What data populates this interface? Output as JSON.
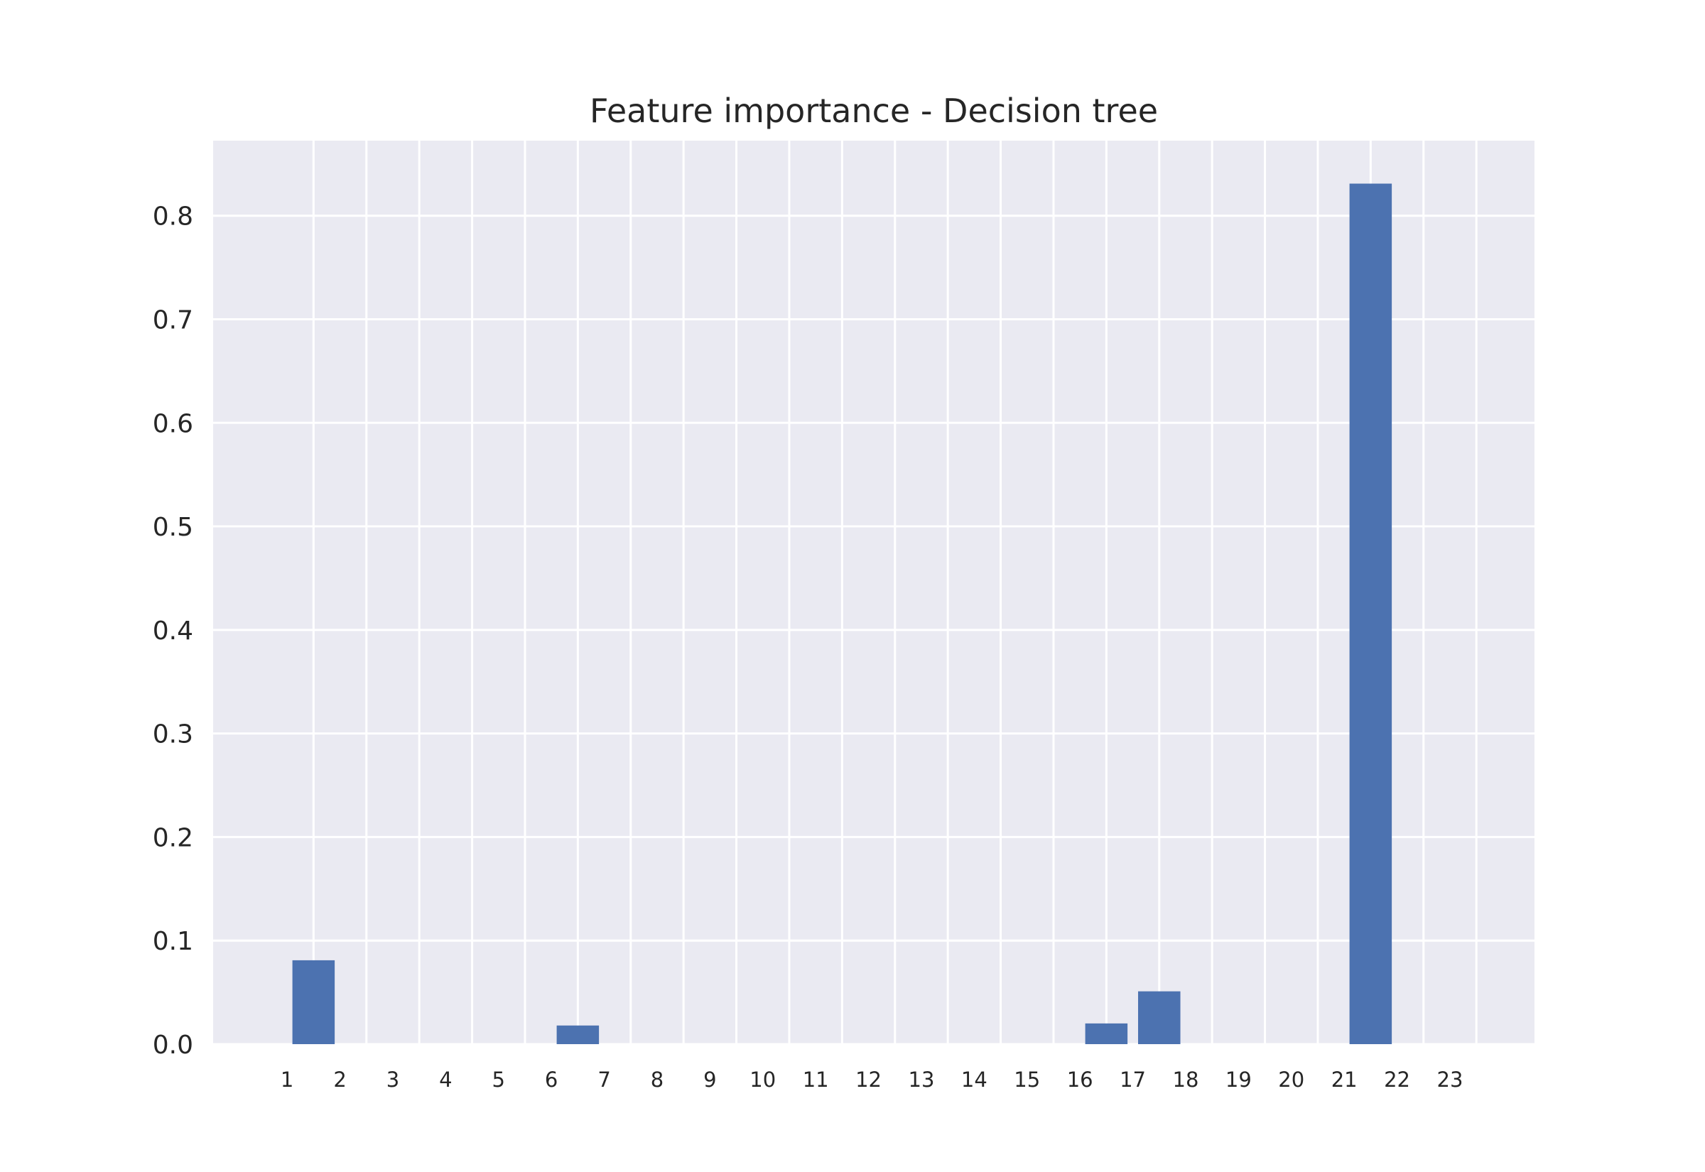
{
  "chart_data": {
    "type": "bar",
    "title": "Feature importance - Decision tree",
    "xlabel": "",
    "ylabel": "",
    "categories": [
      "1",
      "2",
      "3",
      "4",
      "5",
      "6",
      "7",
      "8",
      "9",
      "10",
      "11",
      "12",
      "13",
      "14",
      "15",
      "16",
      "17",
      "18",
      "19",
      "20",
      "21",
      "22",
      "23"
    ],
    "values": [
      0.081,
      0,
      0,
      0,
      0,
      0.018,
      0,
      0,
      0,
      0,
      0,
      0,
      0,
      0,
      0,
      0.02,
      0.051,
      0,
      0,
      0,
      0.831,
      0,
      0
    ],
    "bar_positions": [
      1.5,
      2.5,
      3.5,
      4.5,
      5.5,
      6.5,
      7.5,
      8.5,
      9.5,
      10.5,
      11.5,
      12.5,
      13.5,
      14.5,
      15.5,
      16.5,
      17.5,
      18.5,
      19.5,
      20.5,
      21.5,
      22.5,
      23.5
    ],
    "tick_positions": [
      1,
      2,
      3,
      4,
      5,
      6,
      7,
      8,
      9,
      10,
      11,
      12,
      13,
      14,
      15,
      16,
      17,
      18,
      19,
      20,
      21,
      22,
      23
    ],
    "bar_width": 0.8,
    "xlim": [
      -0.4,
      24.6
    ],
    "ylim": [
      0,
      0.8725
    ],
    "yticks": [
      0.0,
      0.1,
      0.2,
      0.3,
      0.4,
      0.5,
      0.6,
      0.7,
      0.8
    ],
    "ytick_labels": [
      "0.0",
      "0.1",
      "0.2",
      "0.3",
      "0.4",
      "0.5",
      "0.6",
      "0.7",
      "0.8"
    ],
    "grid": true,
    "legend": "none",
    "colors": {
      "bar": "#4c72b0",
      "plot_bg": "#eaeaf2",
      "grid": "#ffffff",
      "text": "#262626"
    }
  }
}
